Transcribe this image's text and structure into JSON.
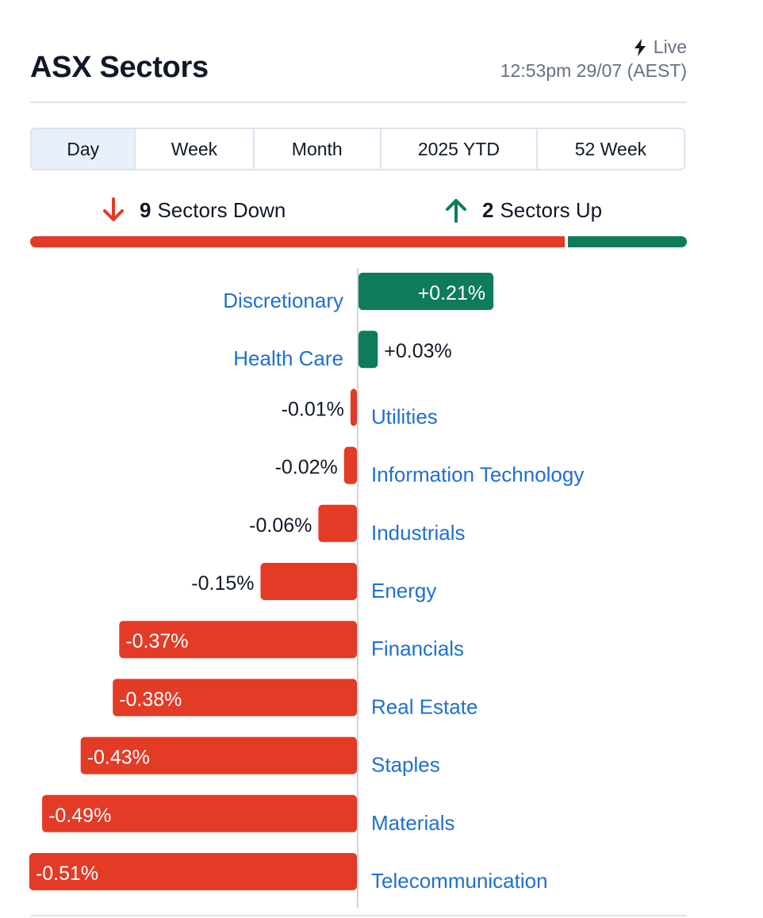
{
  "header": {
    "title": "ASX Sectors",
    "live_label": "Live",
    "timestamp": "12:53pm 29/07 (AEST)"
  },
  "tabs": [
    {
      "label": "Day",
      "active": true
    },
    {
      "label": "Week",
      "active": false
    },
    {
      "label": "Month",
      "active": false
    },
    {
      "label": "2025 YTD",
      "active": false
    },
    {
      "label": "52 Week",
      "active": false
    }
  ],
  "summary": {
    "down_count": "9",
    "down_label": "Sectors Down",
    "up_count": "2",
    "up_label": "Sectors Up"
  },
  "colors": {
    "negative": "#e33b26",
    "positive": "#0e7c5a",
    "link": "#1f6fd4",
    "axis": "#d0d5dc"
  },
  "chart_data": {
    "type": "bar",
    "orientation": "horizontal",
    "categories": [
      "Discretionary",
      "Health Care",
      "Utilities",
      "Information Technology",
      "Industrials",
      "Energy",
      "Financials",
      "Real Estate",
      "Staples",
      "Materials",
      "Telecommunication"
    ],
    "values": [
      0.21,
      0.03,
      -0.01,
      -0.02,
      -0.06,
      -0.15,
      -0.37,
      -0.38,
      -0.43,
      -0.49,
      -0.51
    ],
    "value_labels": [
      "+0.21%",
      "+0.03%",
      "-0.01%",
      "-0.02%",
      "-0.06%",
      "-0.15%",
      "-0.37%",
      "-0.38%",
      "-0.43%",
      "-0.49%",
      "-0.51%"
    ],
    "unit": "%"
  }
}
